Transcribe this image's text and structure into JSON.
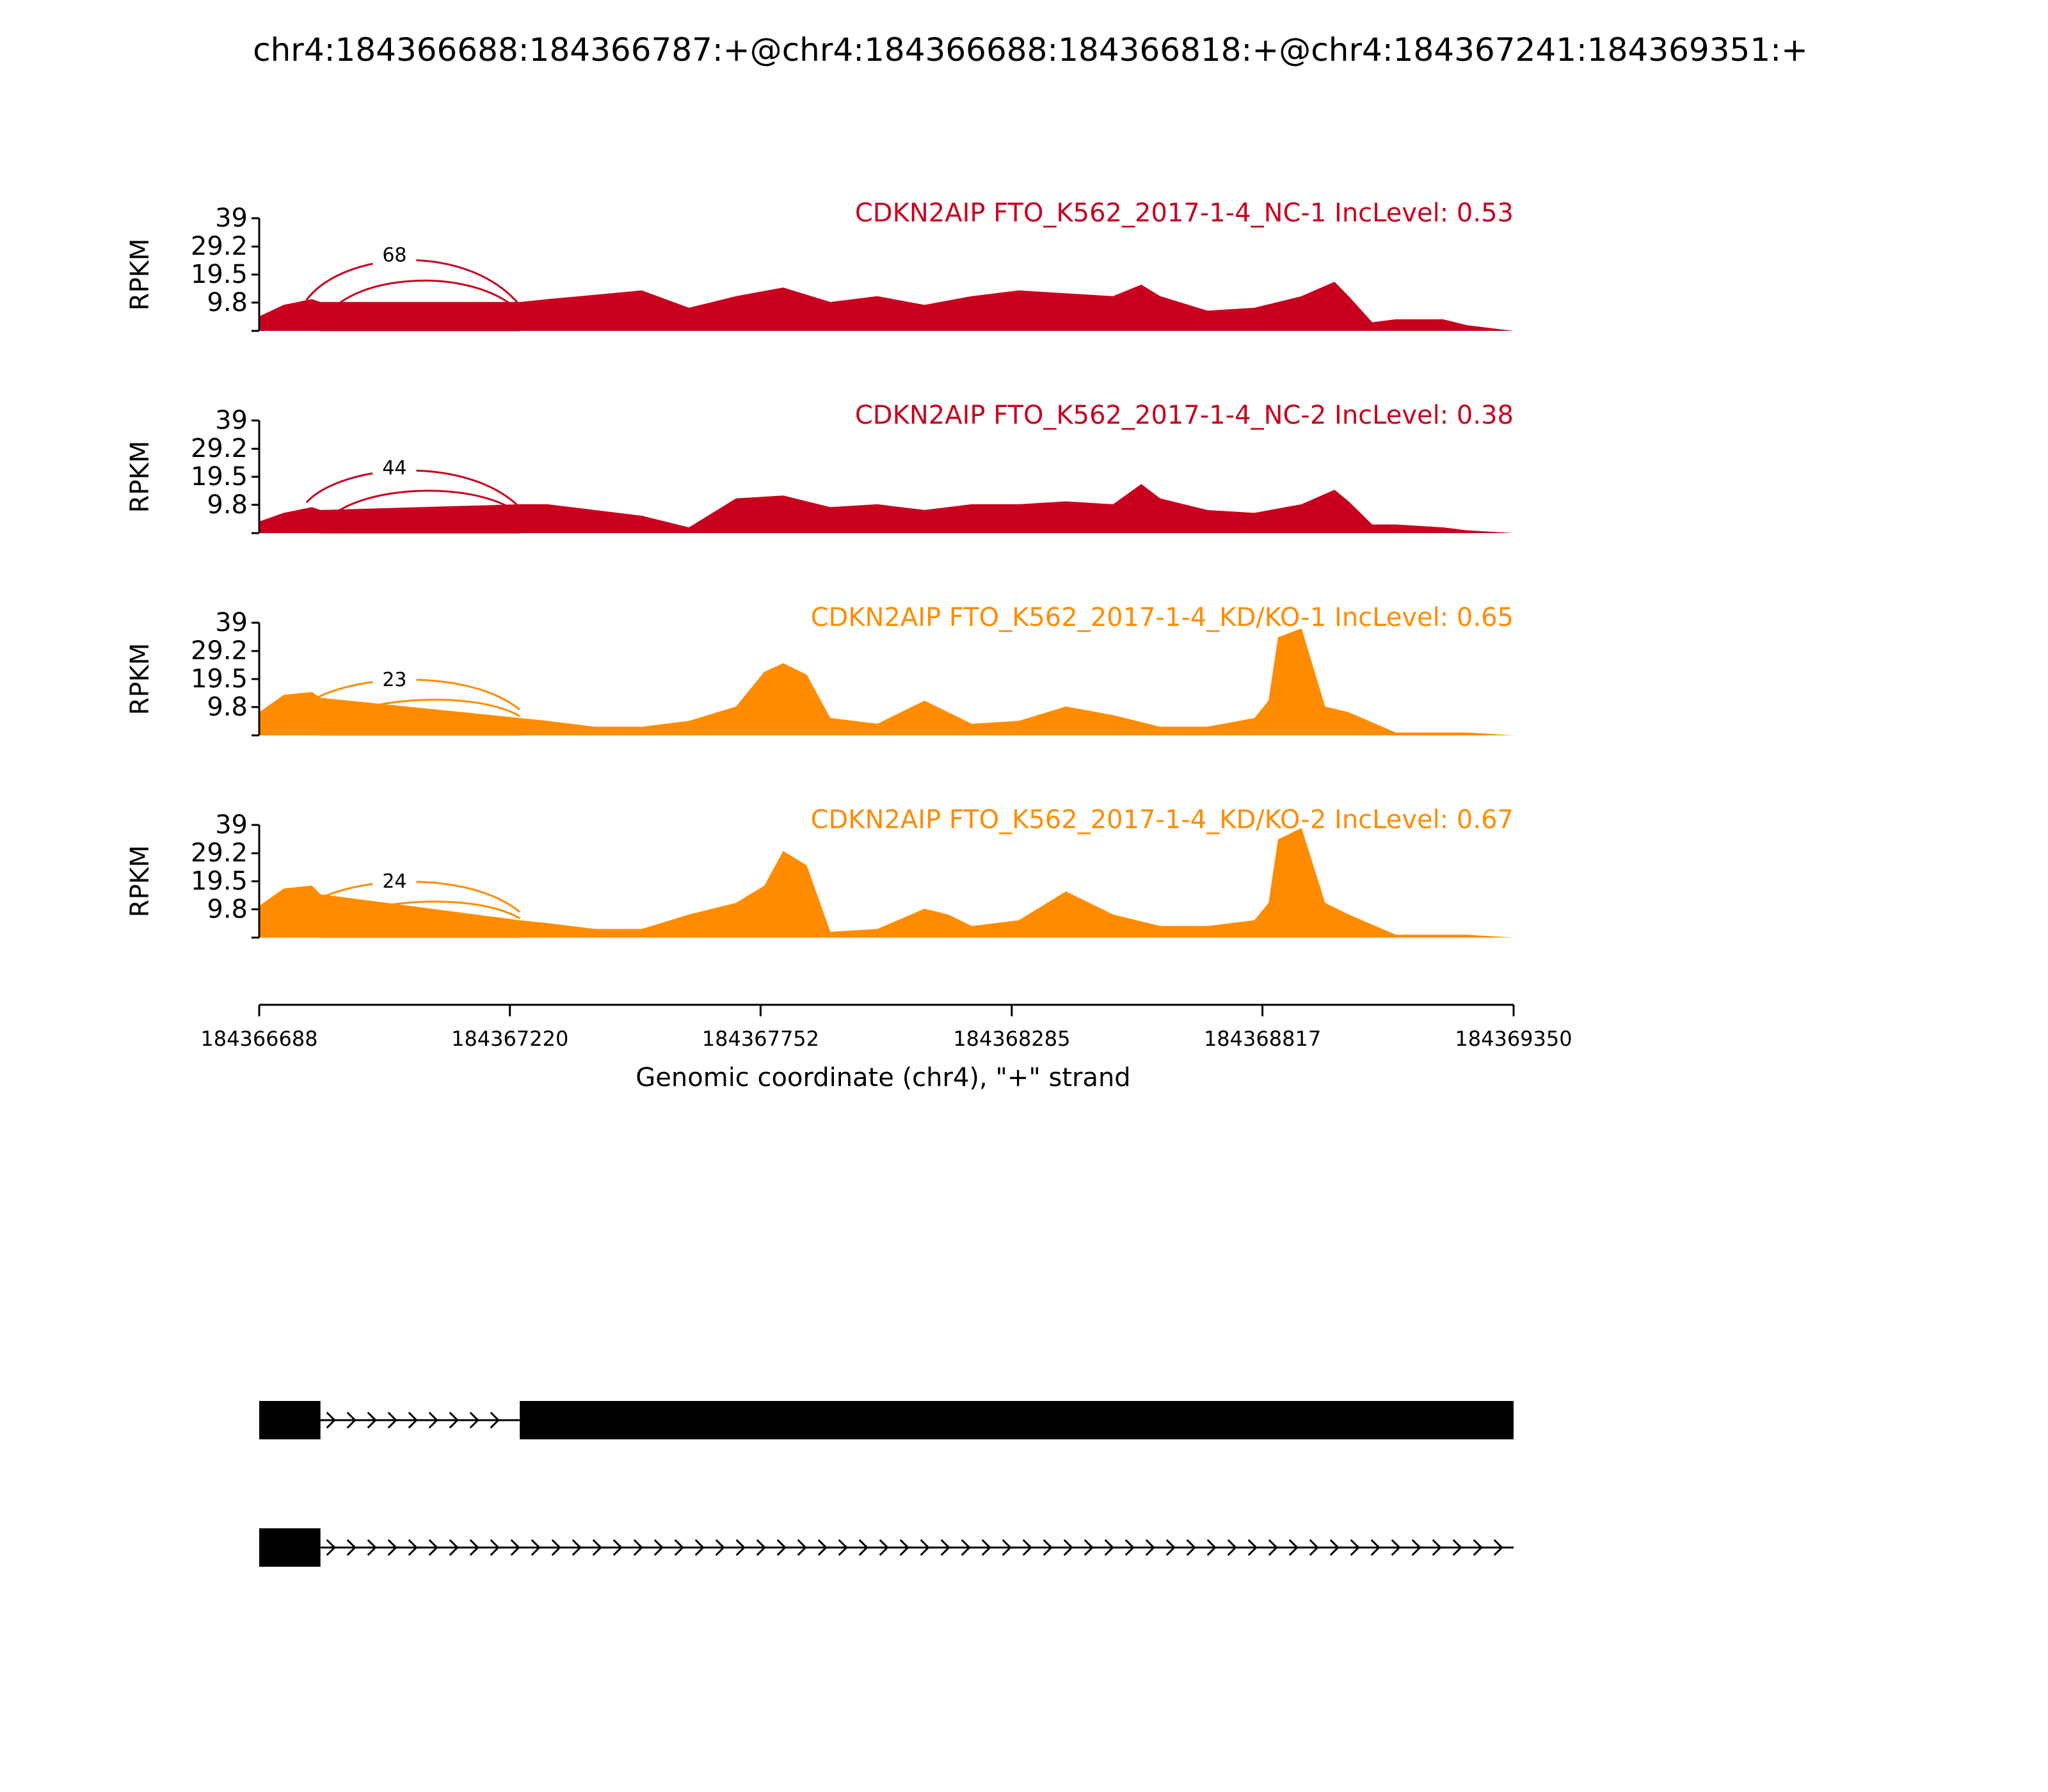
{
  "title": "chr4:184366688:184366787:+@chr4:184366688:184366818:+@chr4:184367241:184369351:+",
  "colors": {
    "nc": "#c8001e",
    "kd": "#ff8c00",
    "gene": "#000000"
  },
  "chart_data": {
    "type": "area",
    "title": "chr4:184366688:184366787:+@chr4:184366688:184366818:+@chr4:184367241:184369351:+",
    "xlabel": "Genomic coordinate (chr4), \"+\" strand",
    "ylabel": "RPKM",
    "xlim": [
      184366688,
      184369350
    ],
    "xticks": [
      "184366688",
      "184367220",
      "184367752",
      "184368285",
      "184368817",
      "184369350"
    ],
    "ylim": [
      0,
      39
    ],
    "yticks": [
      "39",
      "29.2",
      "19.5",
      "9.8"
    ],
    "exon1_end": 184366818,
    "exon2_start": 184367241,
    "tracks": [
      {
        "label": "CDKN2AIP FTO_K562_2017-1-4_NC-1 IncLevel: 0.53",
        "group": "nc",
        "junction_count": "68",
        "x": [
          184366688,
          184366740,
          184366800,
          184366818,
          184367241,
          184367300,
          184367500,
          184367600,
          184367700,
          184367800,
          184367900,
          184368000,
          184368100,
          184368200,
          184368300,
          184368400,
          184368500,
          184368560,
          184368600,
          184368700,
          184368800,
          184368900,
          184368970,
          184369000,
          184369050,
          184369100,
          184369200,
          184369250,
          184369350
        ],
        "y": [
          5,
          9,
          11,
          10,
          10,
          11,
          14,
          8,
          12,
          15,
          10,
          12,
          9,
          12,
          14,
          13,
          12,
          16,
          12,
          7,
          8,
          12,
          17,
          12,
          3,
          4,
          4,
          2,
          0
        ]
      },
      {
        "label": "CDKN2AIP FTO_K562_2017-1-4_NC-2 IncLevel: 0.38",
        "group": "nc",
        "junction_count": "44",
        "x": [
          184366688,
          184366740,
          184366800,
          184366818,
          184367241,
          184367300,
          184367500,
          184367600,
          184367700,
          184367800,
          184367900,
          184368000,
          184368100,
          184368200,
          184368300,
          184368400,
          184368500,
          184368560,
          184368600,
          184368700,
          184368800,
          184368900,
          184368970,
          184369000,
          184369050,
          184369100,
          184369200,
          184369250,
          184369350
        ],
        "y": [
          4,
          7,
          9,
          8,
          10,
          10,
          6,
          2,
          12,
          13,
          9,
          10,
          8,
          10,
          10,
          11,
          10,
          17,
          12,
          8,
          7,
          10,
          15,
          11,
          3,
          3,
          2,
          1,
          0
        ]
      },
      {
        "label": "CDKN2AIP FTO_K562_2017-1-4_KD/KO-1 IncLevel: 0.65",
        "group": "kd",
        "junction_count": "23",
        "x": [
          184366688,
          184366740,
          184366800,
          184366818,
          184367241,
          184367300,
          184367400,
          184367500,
          184367600,
          184367700,
          184367760,
          184367800,
          184367850,
          184367900,
          184368000,
          184368100,
          184368150,
          184368200,
          184368300,
          184368400,
          184368500,
          184368600,
          184368700,
          184368800,
          184368830,
          184368850,
          184368900,
          184368950,
          184369000,
          184369100,
          184369250,
          184369350
        ],
        "y": [
          8,
          14,
          15,
          13,
          6,
          5,
          3,
          3,
          5,
          10,
          22,
          25,
          21,
          6,
          4,
          12,
          8,
          4,
          5,
          10,
          7,
          3,
          3,
          6,
          12,
          34,
          37,
          10,
          8,
          1,
          1,
          0
        ]
      },
      {
        "label": "CDKN2AIP FTO_K562_2017-1-4_KD/KO-2 IncLevel: 0.67",
        "group": "kd",
        "junction_count": "24",
        "x": [
          184366688,
          184366740,
          184366800,
          184366818,
          184367241,
          184367300,
          184367400,
          184367500,
          184367600,
          184367700,
          184367760,
          184367800,
          184367850,
          184367900,
          184368000,
          184368100,
          184368150,
          184368200,
          184368300,
          184368400,
          184368500,
          184368600,
          184368700,
          184368800,
          184368830,
          184368850,
          184368900,
          184368950,
          184369000,
          184369100,
          184369250,
          184369350
        ],
        "y": [
          11,
          17,
          18,
          15,
          6,
          5,
          3,
          3,
          8,
          12,
          18,
          30,
          25,
          2,
          3,
          10,
          8,
          4,
          6,
          16,
          8,
          4,
          4,
          6,
          12,
          34,
          38,
          12,
          8,
          1,
          1,
          0
        ]
      }
    ],
    "transcripts": [
      {
        "exons": [
          [
            184366688,
            184366818
          ],
          [
            184367241,
            184369350
          ]
        ]
      },
      {
        "exons": [
          [
            184366688,
            184366818
          ]
        ]
      }
    ]
  }
}
